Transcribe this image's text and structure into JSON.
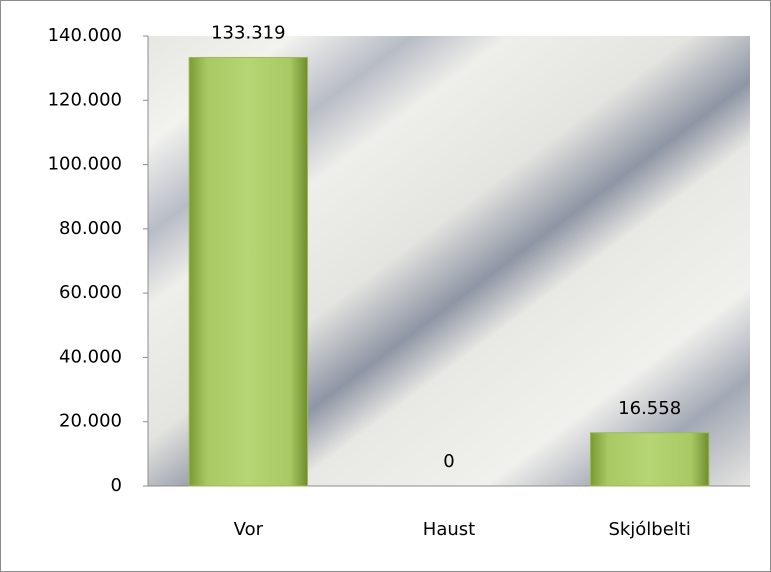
{
  "chart_data": {
    "type": "bar",
    "categories": [
      "Vor",
      "Haust",
      "Skjólbelti"
    ],
    "values": [
      133319,
      0,
      16558
    ],
    "value_labels": [
      "133.319",
      "0",
      "16.558"
    ],
    "color": "#9bbb59",
    "ylim": [
      0,
      140000
    ],
    "yticks": [
      0,
      {
        "value": 20000,
        "label": "20.000"
      },
      {
        "value": 40000,
        "label": "40.000"
      },
      {
        "value": 60000,
        "label": "60.000"
      },
      {
        "value": 80000,
        "label": "80.000"
      },
      {
        "value": 100000,
        "label": "100.000"
      },
      {
        "value": 120000,
        "label": "120.000"
      },
      {
        "value": 140000,
        "label": "140.000"
      }
    ],
    "grid": false
  }
}
